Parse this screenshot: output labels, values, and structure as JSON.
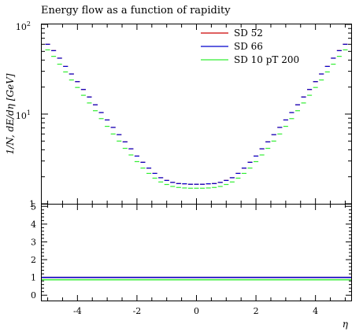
{
  "chart_data": [
    {
      "type": "line",
      "title": "Energy flow as a function of rapidity",
      "xlabel": "η",
      "ylabel": "1/N, dE/dη [GeV]",
      "xlim": [
        -5.2,
        5.2
      ],
      "ylim": [
        1,
        100
      ],
      "yscale": "log",
      "legend_position": "top-right",
      "x": [
        -5.0,
        -4.8,
        -4.6,
        -4.4,
        -4.2,
        -4.0,
        -3.8,
        -3.6,
        -3.4,
        -3.2,
        -3.0,
        -2.8,
        -2.6,
        -2.4,
        -2.2,
        -2.0,
        -1.8,
        -1.6,
        -1.4,
        -1.2,
        -1.0,
        -0.8,
        -0.6,
        -0.4,
        -0.2,
        0.0,
        0.2,
        0.4,
        0.6,
        0.8,
        1.0,
        1.2,
        1.4,
        1.6,
        1.8,
        2.0,
        2.2,
        2.4,
        2.6,
        2.8,
        3.0,
        3.2,
        3.4,
        3.6,
        3.8,
        4.0,
        4.2,
        4.4,
        4.6,
        4.8,
        5.0
      ],
      "series": [
        {
          "name": "SD 52",
          "color": "#cc0000",
          "values": [
            60,
            51,
            42,
            34,
            28,
            23,
            18.8,
            15.5,
            12.7,
            10.4,
            8.6,
            7.1,
            5.9,
            4.9,
            4.1,
            3.4,
            2.9,
            2.5,
            2.18,
            1.95,
            1.82,
            1.73,
            1.68,
            1.67,
            1.65,
            1.65,
            1.65,
            1.67,
            1.68,
            1.73,
            1.82,
            1.95,
            2.18,
            2.5,
            2.9,
            3.4,
            4.1,
            4.9,
            5.9,
            7.1,
            8.6,
            10.4,
            12.7,
            15.5,
            18.8,
            23,
            28,
            34,
            42,
            51,
            60
          ]
        },
        {
          "name": "SD 66",
          "color": "#0000cc",
          "values": [
            60,
            51,
            42,
            34,
            28,
            23,
            18.8,
            15.5,
            12.7,
            10.4,
            8.6,
            7.1,
            5.9,
            4.9,
            4.1,
            3.4,
            2.9,
            2.5,
            2.18,
            1.95,
            1.82,
            1.73,
            1.68,
            1.67,
            1.65,
            1.65,
            1.65,
            1.67,
            1.68,
            1.73,
            1.82,
            1.95,
            2.18,
            2.5,
            2.9,
            3.4,
            4.1,
            4.9,
            5.9,
            7.1,
            8.6,
            10.4,
            12.7,
            15.5,
            18.8,
            23,
            28,
            34,
            42,
            51,
            60
          ]
        },
        {
          "name": "SD 10 pT 200",
          "color": "#33ee33",
          "values": [
            52,
            44,
            36,
            29.5,
            24,
            19.8,
            16.2,
            13.3,
            10.9,
            8.9,
            7.3,
            6.0,
            5.0,
            4.15,
            3.5,
            2.95,
            2.5,
            2.18,
            1.93,
            1.75,
            1.64,
            1.56,
            1.52,
            1.5,
            1.49,
            1.49,
            1.49,
            1.5,
            1.52,
            1.56,
            1.64,
            1.75,
            1.93,
            2.18,
            2.5,
            2.95,
            3.5,
            4.15,
            5.0,
            6.0,
            7.3,
            8.9,
            10.9,
            13.3,
            16.2,
            19.8,
            24,
            29.5,
            36,
            44,
            52
          ]
        }
      ]
    },
    {
      "type": "line",
      "title": "",
      "xlabel": "η",
      "ylabel": "",
      "xlim": [
        -5.2,
        5.2
      ],
      "ylim": [
        -0.3,
        5.1
      ],
      "series": [
        {
          "name": "SD 52",
          "color": "#cc0000",
          "constant": 1.0
        },
        {
          "name": "SD 66",
          "color": "#0000cc",
          "constant": 1.0
        },
        {
          "name": "SD 10 pT 200",
          "color": "#33ee33",
          "constant": 0.87
        }
      ]
    }
  ],
  "axes": {
    "x_ticks": [
      "-4",
      "-2",
      "0",
      "2",
      "4"
    ],
    "y_ticks_main": [
      "1",
      "10",
      "10"
    ],
    "y_tick_exponents": [
      "",
      "1",
      "2"
    ],
    "y_ticks_ratio": [
      "0",
      "1",
      "2",
      "3",
      "4",
      "5"
    ]
  }
}
